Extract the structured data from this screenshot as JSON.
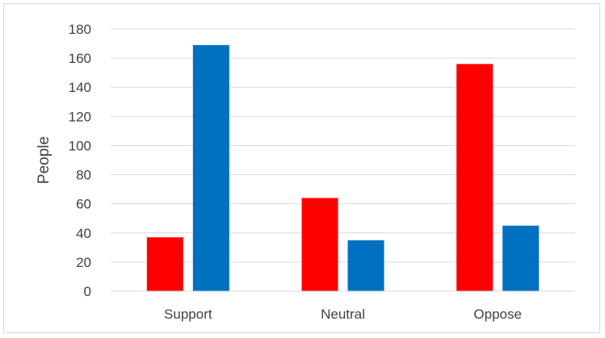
{
  "chart_data": {
    "type": "bar",
    "title": "",
    "xlabel": "",
    "ylabel": "People",
    "categories": [
      "Support",
      "Neutral",
      "Oppose"
    ],
    "series": [
      {
        "values": [
          37,
          64,
          156
        ],
        "color": "#ff0000"
      },
      {
        "values": [
          169,
          35,
          45
        ],
        "color": "#0070c0"
      }
    ],
    "ylim": [
      0,
      180
    ],
    "yticks": [
      0,
      20,
      40,
      60,
      80,
      100,
      120,
      140,
      160,
      180
    ],
    "grid": true,
    "legend": "none"
  }
}
